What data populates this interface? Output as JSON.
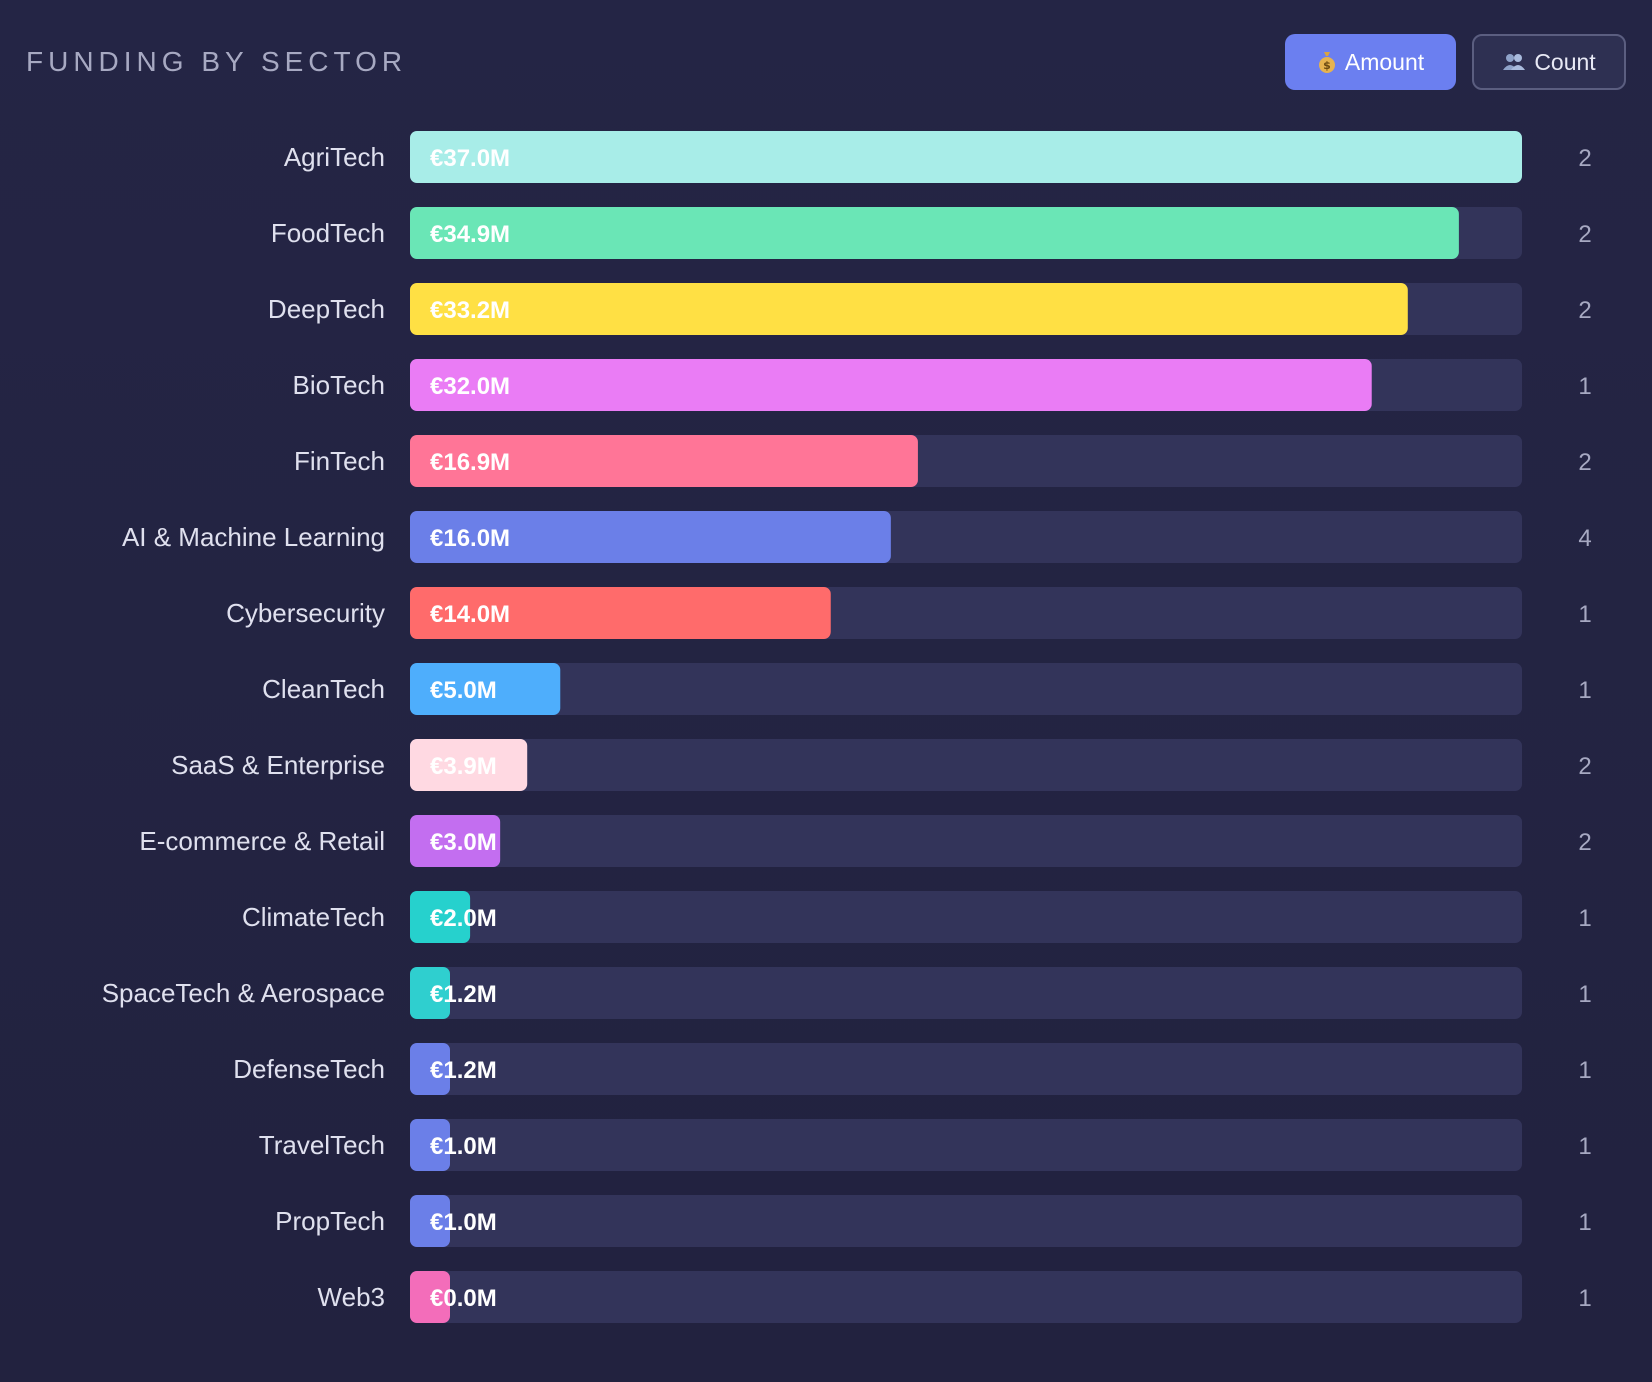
{
  "header": {
    "title": "FUNDING BY SECTOR",
    "amount_label": "Amount",
    "count_label": "Count"
  },
  "colors": {
    "background": "#242545",
    "track": "#33345a",
    "toggle_active": "#6b7ff0"
  },
  "chart_data": {
    "type": "bar",
    "orientation": "horizontal",
    "title": "FUNDING BY SECTOR",
    "metric": "Amount",
    "xlim": [
      0,
      37.0
    ],
    "unit": "€M",
    "categories": [
      "AgriTech",
      "FoodTech",
      "DeepTech",
      "BioTech",
      "FinTech",
      "AI & Machine Learning",
      "Cybersecurity",
      "CleanTech",
      "SaaS & Enterprise",
      "E-commerce & Retail",
      "ClimateTech",
      "SpaceTech & Aerospace",
      "DefenseTech",
      "TravelTech",
      "PropTech",
      "Web3"
    ],
    "values": [
      37.0,
      34.9,
      33.2,
      32.0,
      16.9,
      16.0,
      14.0,
      5.0,
      3.9,
      3.0,
      2.0,
      1.2,
      1.2,
      1.0,
      1.0,
      0.0
    ],
    "value_labels": [
      "€37.0M",
      "€34.9M",
      "€33.2M",
      "€32.0M",
      "€16.9M",
      "€16.0M",
      "€14.0M",
      "€5.0M",
      "€3.9M",
      "€3.0M",
      "€2.0M",
      "€1.2M",
      "€1.2M",
      "€1.0M",
      "€1.0M",
      "€0.0M"
    ],
    "counts": [
      2,
      2,
      2,
      1,
      2,
      4,
      1,
      1,
      2,
      2,
      1,
      1,
      1,
      1,
      1,
      1
    ],
    "bar_colors": [
      "#a8ede8",
      "#6ae6b6",
      "#ffe044",
      "#ea7cf5",
      "#ff7597",
      "#6b7fe8",
      "#ff6b6b",
      "#4eaefc",
      "#ffd9e2",
      "#c36ef0",
      "#26d1cd",
      "#2fcfcf",
      "#6b7fe8",
      "#6b7fe8",
      "#6b7fe8",
      "#f36dba"
    ]
  }
}
